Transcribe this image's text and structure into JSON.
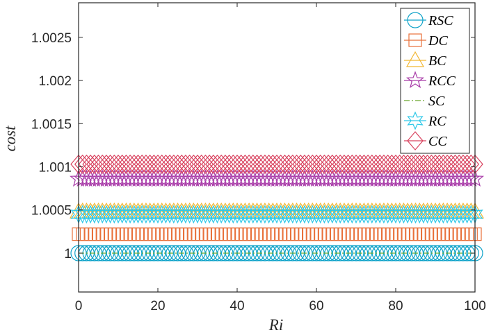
{
  "chart_data": {
    "type": "line",
    "xlabel": "Ri",
    "ylabel": "cost",
    "xlim": [
      0,
      100
    ],
    "ylim": [
      0.99955,
      1.0029
    ],
    "x_ticks": [
      0,
      20,
      40,
      60,
      80,
      100
    ],
    "x_tick_labels": [
      "0",
      "20",
      "40",
      "60",
      "80",
      "100"
    ],
    "y_ticks": [
      1,
      1.0005,
      1.001,
      1.0015,
      1.002,
      1.0025
    ],
    "y_tick_labels": [
      "1",
      "1.0005",
      "1.001",
      "1.0015",
      "1.002",
      "1.0025"
    ],
    "grid": false,
    "legend_position": "top-right",
    "x": [
      0,
      1,
      2,
      3,
      4,
      5,
      6,
      7,
      8,
      9,
      10,
      11,
      12,
      13,
      14,
      15,
      16,
      17,
      18,
      19,
      20,
      21,
      22,
      23,
      24,
      25,
      26,
      27,
      28,
      29,
      30,
      31,
      32,
      33,
      34,
      35,
      36,
      37,
      38,
      39,
      40,
      41,
      42,
      43,
      44,
      45,
      46,
      47,
      48,
      49,
      50,
      51,
      52,
      53,
      54,
      55,
      56,
      57,
      58,
      59,
      60,
      61,
      62,
      63,
      64,
      65,
      66,
      67,
      68,
      69,
      70,
      71,
      72,
      73,
      74,
      75,
      76,
      77,
      78,
      79,
      80,
      81,
      82,
      83,
      84,
      85,
      86,
      87,
      88,
      89,
      90,
      91,
      92,
      93,
      94,
      95,
      96,
      97,
      98,
      99,
      100
    ],
    "series": [
      {
        "name": "RSC",
        "value": 1.0,
        "marker": "circle",
        "color": "#0fa3c9"
      },
      {
        "name": "DC",
        "value": 1.00022,
        "marker": "square",
        "color": "#e8703a"
      },
      {
        "name": "BC",
        "value": 1.00048,
        "marker": "triangle",
        "color": "#f2b632"
      },
      {
        "name": "RCC",
        "value": 1.00086,
        "marker": "star5",
        "color": "#a83aa8"
      },
      {
        "name": "SC",
        "value": 1.0,
        "marker": "none",
        "line": "dash-dot",
        "color": "#6aa82f"
      },
      {
        "name": "RC",
        "value": 1.00045,
        "marker": "star6",
        "color": "#2ec8e8"
      },
      {
        "name": "CC",
        "value": 1.00103,
        "marker": "diamond",
        "color": "#d9435f"
      }
    ]
  }
}
